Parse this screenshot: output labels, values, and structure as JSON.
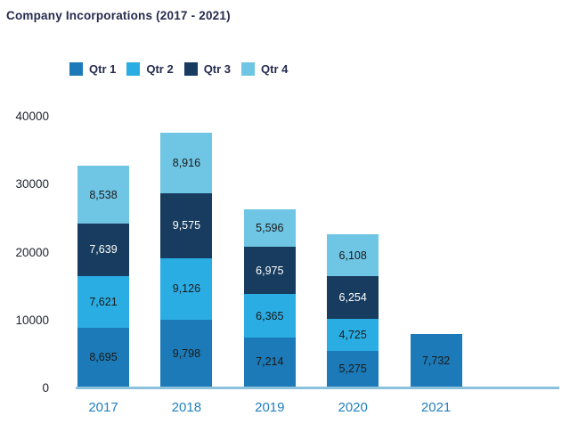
{
  "chart_data": {
    "type": "bar",
    "stacked": true,
    "title": "Company Incorporations (2017 - 2021)",
    "categories": [
      "2017",
      "2018",
      "2019",
      "2020",
      "2021"
    ],
    "series": [
      {
        "name": "Qtr 1",
        "color": "#1b7ab7",
        "label_color": "#1a1a1a",
        "values": [
          8695,
          9798,
          7214,
          5275,
          7732
        ]
      },
      {
        "name": "Qtr 2",
        "color": "#29ade3",
        "label_color": "#1a1a1a",
        "values": [
          7621,
          9126,
          6365,
          4725,
          null
        ]
      },
      {
        "name": "Qtr 3",
        "color": "#173c5f",
        "label_color": "#ffffff",
        "values": [
          7639,
          9575,
          6975,
          6254,
          null
        ]
      },
      {
        "name": "Qtr 4",
        "color": "#6fc5e4",
        "label_color": "#1a1a1a",
        "values": [
          8538,
          8916,
          5596,
          6108,
          null
        ]
      }
    ],
    "ylim": [
      0,
      40000
    ],
    "yticks": [
      0,
      10000,
      20000,
      30000,
      40000
    ],
    "ytick_labels": [
      "0",
      "10000",
      "20000",
      "30000",
      "40000"
    ],
    "legend_position": "top",
    "grid": false,
    "value_label_format": "thousands-comma",
    "colors": {
      "title_text": "#252b4e",
      "legend_text": "#252b4e",
      "ytick_text": "#20242f",
      "xtick_text": "#2280c2",
      "axis_line": "#8cc1de",
      "background": "#ffffff"
    }
  }
}
